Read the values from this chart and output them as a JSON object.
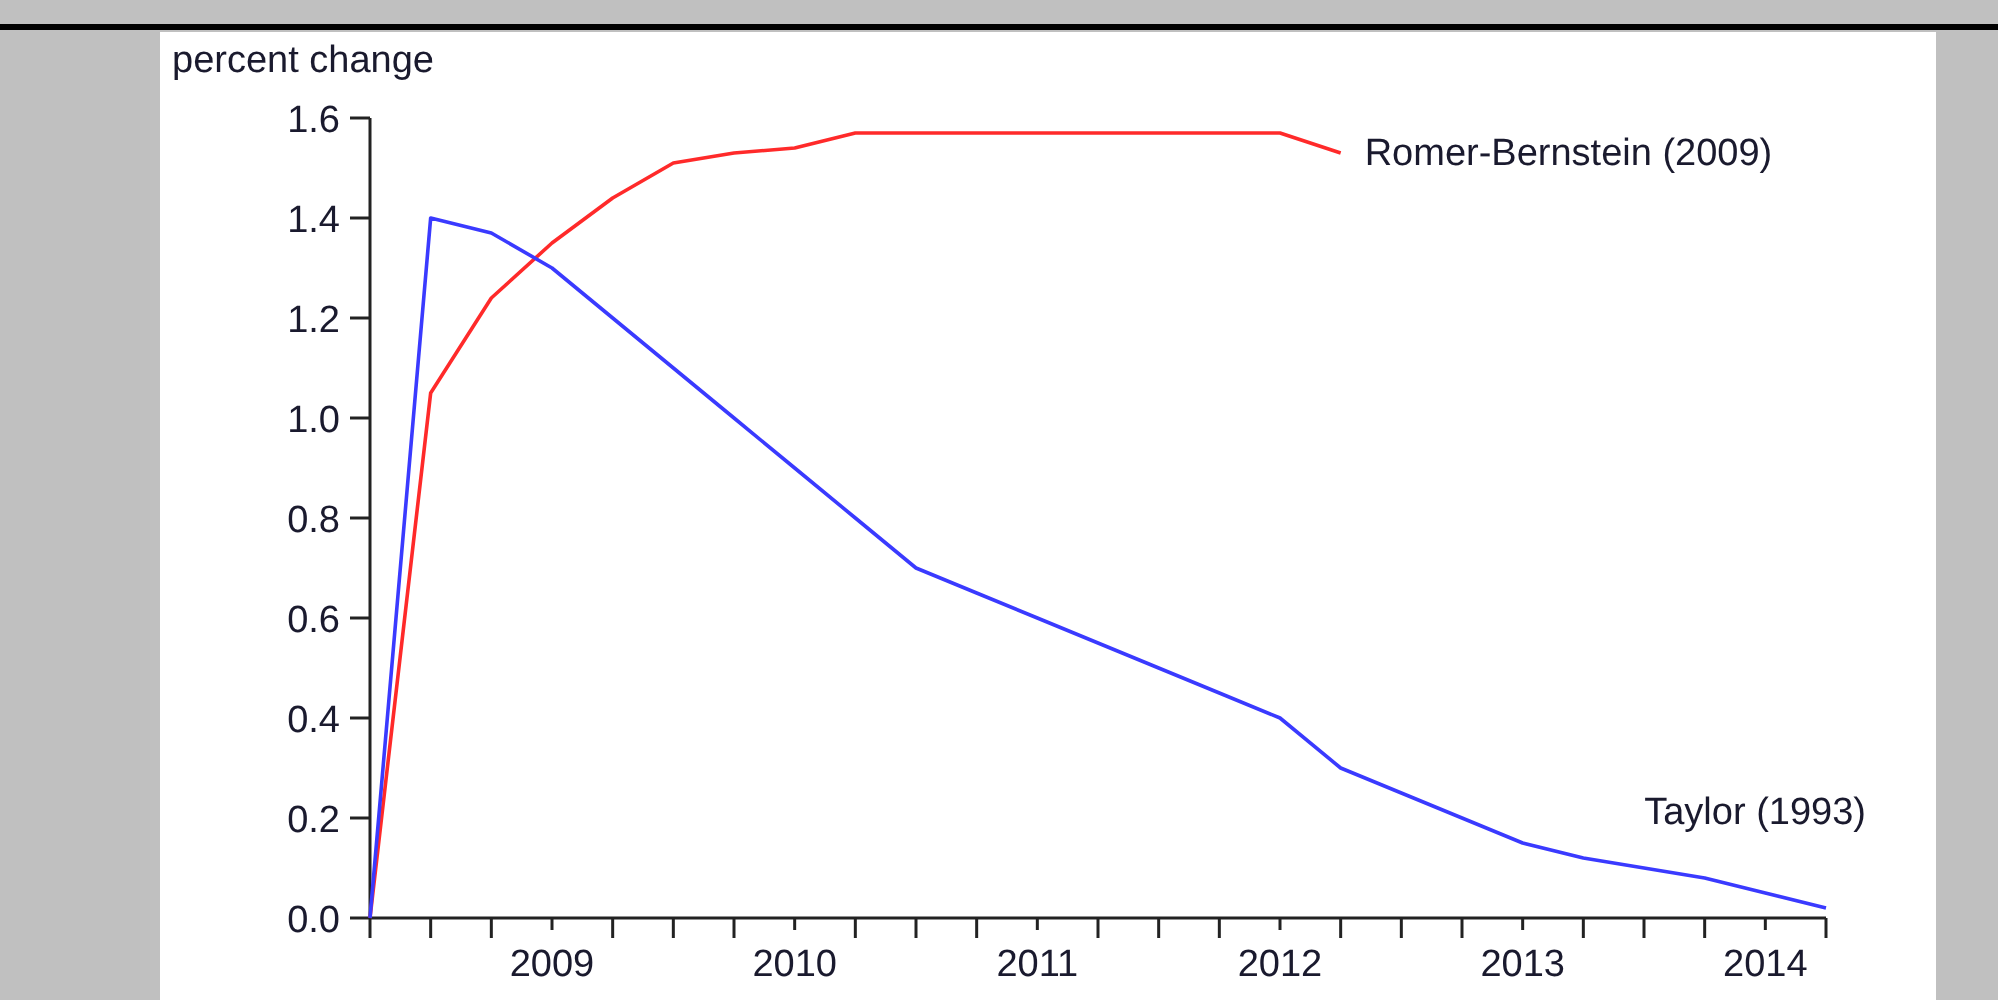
{
  "chart_data": {
    "type": "line",
    "ylabel": "percent change",
    "xlim": [
      2008.75,
      2014.75
    ],
    "xticks": [
      {
        "value": 2009,
        "label": null
      },
      {
        "value": 2009.25,
        "label": null
      },
      {
        "value": 2009.5,
        "label": "2009"
      },
      {
        "value": 2009.75,
        "label": null
      },
      {
        "value": 2010,
        "label": null
      },
      {
        "value": 2010.25,
        "label": null
      },
      {
        "value": 2010.5,
        "label": "2010"
      },
      {
        "value": 2010.75,
        "label": null
      },
      {
        "value": 2011,
        "label": null
      },
      {
        "value": 2011.25,
        "label": null
      },
      {
        "value": 2011.5,
        "label": "2011"
      },
      {
        "value": 2011.75,
        "label": null
      },
      {
        "value": 2012,
        "label": null
      },
      {
        "value": 2012.25,
        "label": null
      },
      {
        "value": 2012.5,
        "label": "2012"
      },
      {
        "value": 2012.75,
        "label": null
      },
      {
        "value": 2013,
        "label": null
      },
      {
        "value": 2013.25,
        "label": null
      },
      {
        "value": 2013.5,
        "label": "2013"
      },
      {
        "value": 2013.75,
        "label": null
      },
      {
        "value": 2014,
        "label": null
      },
      {
        "value": 2014.25,
        "label": null
      },
      {
        "value": 2014.5,
        "label": "2014"
      },
      {
        "value": 2014.75,
        "label": null
      }
    ],
    "ylim": [
      0,
      1.6
    ],
    "yticks": [
      {
        "value": 0,
        "label": "0.0"
      },
      {
        "value": 0.2,
        "label": "0.2"
      },
      {
        "value": 0.4,
        "label": "0.4"
      },
      {
        "value": 0.6,
        "label": "0.6"
      },
      {
        "value": 0.8,
        "label": "0.8"
      },
      {
        "value": 1,
        "label": "1.0"
      },
      {
        "value": 1.2,
        "label": "1.2"
      },
      {
        "value": 1.4,
        "label": "1.4"
      },
      {
        "value": 1.6,
        "label": "1.6"
      }
    ],
    "grid": false,
    "marker": "none",
    "line_style": "solid",
    "series": [
      {
        "name": "Romer-Bernstein (2009)",
        "color": "#ff2a2a",
        "x": [
          2008.75,
          2009,
          2009.25,
          2009.5,
          2009.75,
          2010,
          2010.25,
          2010.5,
          2010.75,
          2011,
          2011.25,
          2011.5,
          2011.75,
          2012,
          2012.25,
          2012.5,
          2012.75
        ],
        "values": [
          0,
          1.05,
          1.24,
          1.35,
          1.44,
          1.51,
          1.53,
          1.54,
          1.57,
          1.57,
          1.57,
          1.57,
          1.57,
          1.57,
          1.57,
          1.57,
          1.53
        ]
      },
      {
        "name": "Taylor (1993)",
        "color": "#3a3aff",
        "x": [
          2008.75,
          2009,
          2009.25,
          2009.5,
          2009.75,
          2010,
          2010.25,
          2010.5,
          2010.75,
          2011,
          2011.25,
          2011.5,
          2011.75,
          2012,
          2012.25,
          2012.5,
          2012.75,
          2013,
          2013.25,
          2013.5,
          2013.75,
          2014,
          2014.25,
          2014.5,
          2014.75
        ],
        "values": [
          0,
          1.4,
          1.37,
          1.3,
          1.2,
          1.1,
          1.0,
          0.9,
          0.8,
          0.7,
          0.65,
          0.6,
          0.55,
          0.5,
          0.45,
          0.4,
          0.3,
          0.25,
          0.2,
          0.15,
          0.12,
          0.1,
          0.08,
          0.05,
          0.02
        ]
      }
    ]
  }
}
